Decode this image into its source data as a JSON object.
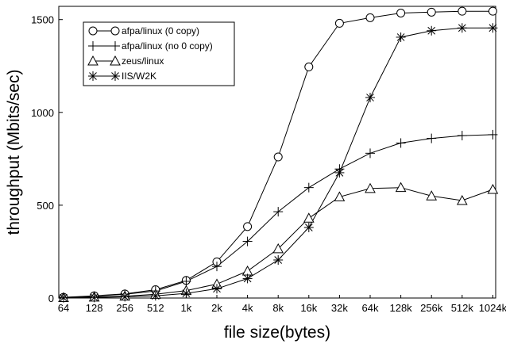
{
  "chart_data": {
    "type": "line",
    "title": "",
    "xlabel": "file size(bytes)",
    "ylabel": "throughput (Mbits/sec)",
    "categories": [
      "64",
      "128",
      "256",
      "512",
      "1k",
      "2k",
      "4k",
      "8k",
      "16k",
      "32k",
      "64k",
      "128k",
      "256k",
      "512k",
      "1024k"
    ],
    "yticks": [
      "0",
      "500",
      "1000",
      "1500"
    ],
    "ylim": [
      0,
      1500
    ],
    "grid": false,
    "legend_position": "top-left",
    "series": [
      {
        "name": "afpa/linux (0 copy)",
        "marker": "circle",
        "values": [
          4,
          12,
          22,
          45,
          95,
          195,
          385,
          760,
          1245,
          1480,
          1510,
          1535,
          1540,
          1545,
          1545
        ]
      },
      {
        "name": "afpa/linux (no 0 copy)",
        "marker": "plus",
        "values": [
          3,
          10,
          20,
          38,
          90,
          170,
          305,
          465,
          595,
          695,
          780,
          835,
          860,
          875,
          880
        ]
      },
      {
        "name": "zeus/linux",
        "marker": "triangle",
        "values": [
          2,
          5,
          10,
          20,
          40,
          75,
          145,
          265,
          430,
          545,
          590,
          595,
          550,
          525,
          585
        ]
      },
      {
        "name": "IIS/W2K",
        "marker": "asterisk",
        "values": [
          1,
          3,
          7,
          12,
          25,
          50,
          105,
          205,
          380,
          675,
          1080,
          1405,
          1440,
          1455,
          1455
        ]
      }
    ]
  }
}
